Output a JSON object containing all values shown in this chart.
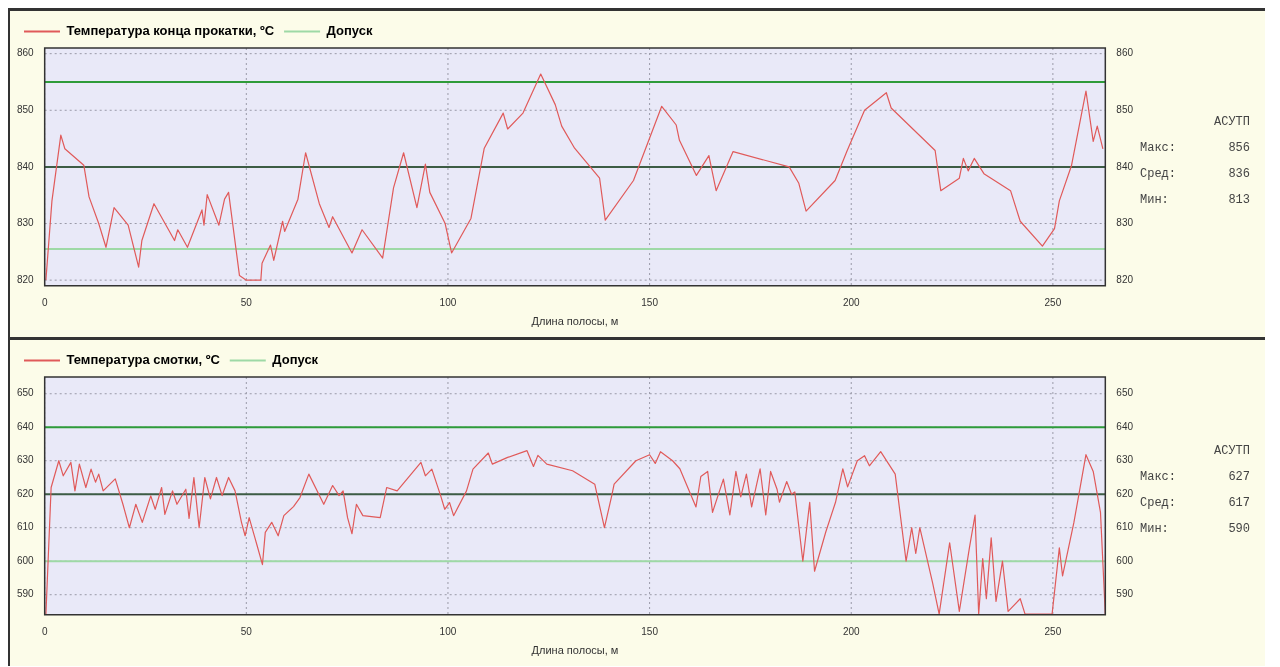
{
  "chart_data": [
    {
      "type": "line",
      "xlabel": "Длина полосы, м",
      "legend": "top left",
      "grid": true,
      "marker": "none",
      "line_style": "solid",
      "xlim": [
        0,
        263
      ],
      "xticks": [
        0,
        50,
        100,
        150,
        200,
        250
      ],
      "ylim": [
        819,
        861
      ],
      "yticks": [
        820,
        830,
        840,
        850,
        860
      ],
      "y2lim": [
        819,
        861
      ],
      "y2ticks": [
        820,
        830,
        840,
        850,
        860
      ],
      "series": [
        {
          "name": "Температура конца прокатки, ºC",
          "color": "#e05a5a",
          "x": [
            0.3,
            1.8,
            4,
            5,
            9.7,
            11,
            13.4,
            15.2,
            17.2,
            20.7,
            23.3,
            24.1,
            27.1,
            30.4,
            32.2,
            33,
            35.4,
            39,
            39.5,
            40.3,
            43.2,
            44.6,
            45.6,
            48.3,
            50,
            53.6,
            53.9,
            56,
            56.8,
            59,
            59.5,
            62.8,
            64.7,
            68.1,
            70.5,
            71.4,
            76.2,
            78.7,
            83.8,
            86.5,
            89,
            92.3,
            94.4,
            95.5,
            99.3,
            100.9,
            105.7,
            109,
            113.7,
            114.8,
            118.6,
            123,
            126.6,
            128.2,
            131.4,
            137.6,
            139,
            146,
            153,
            156.6,
            157.4,
            161.6,
            164.7,
            166.5,
            170.7,
            184.6,
            187,
            188.8,
            196,
            199,
            203.3,
            208.7,
            209.9,
            220.8,
            222.2,
            226.8,
            227.8,
            229,
            230.5,
            232.9,
            239.5,
            241.9,
            247.4,
            250.4,
            251.6,
            254.6,
            258.2,
            260,
            261,
            262.4
          ],
          "values": [
            820,
            834,
            845.6,
            843.2,
            840.3,
            834.7,
            830,
            825.8,
            832.8,
            829.7,
            822.3,
            827,
            833.5,
            829.3,
            827,
            828.9,
            825.8,
            832.4,
            829.7,
            835.1,
            829.7,
            834.3,
            835.5,
            820.8,
            820,
            820,
            823,
            826.2,
            823.5,
            830.4,
            828.6,
            834.3,
            842.5,
            833.5,
            829.3,
            831.2,
            824.8,
            828.9,
            823.9,
            836.3,
            842.5,
            832.8,
            840.5,
            835.5,
            830,
            824.8,
            830.9,
            843.3,
            849.5,
            846.7,
            849.5,
            856.4,
            851,
            847.2,
            843.3,
            838,
            830.6,
            837.6,
            850.7,
            847.4,
            844.7,
            838.5,
            842,
            835.8,
            842.7,
            840,
            837.1,
            832.2,
            837.6,
            842.9,
            850,
            853.1,
            850.4,
            842.9,
            835.8,
            838,
            841.5,
            839.3,
            841.5,
            838.8,
            835.8,
            830.4,
            826,
            829.1,
            834,
            840.2,
            853.4,
            844.5,
            847.2,
            843.2
          ]
        }
      ],
      "ref_lines": [
        {
          "axis": "y",
          "value": 855,
          "color": "#2e9b3a"
        },
        {
          "axis": "y",
          "value": 840,
          "color": "#3d5c45"
        },
        {
          "axis": "y",
          "value": 825.5,
          "color": "#9ed9a6",
          "label": "Допуск"
        }
      ],
      "annotations": [
        "АСУТП",
        "Макс:",
        "856",
        "Сред:",
        "836",
        "Мин:",
        "813"
      ]
    },
    {
      "type": "line",
      "xlabel": "Длина полосы, м",
      "legend": "top left",
      "grid": true,
      "marker": "none",
      "line_style": "solid",
      "xlim": [
        0,
        263
      ],
      "xticks": [
        0,
        50,
        100,
        150,
        200,
        250
      ],
      "ylim": [
        584,
        655
      ],
      "yticks": [
        590,
        600,
        610,
        620,
        630,
        640,
        650
      ],
      "y2lim": [
        584,
        655
      ],
      "y2ticks": [
        590,
        600,
        610,
        620,
        630,
        640,
        650
      ],
      "series": [
        {
          "name": "Температура смотки, ºC",
          "color": "#e05a5a",
          "x": [
            0.3,
            1.6,
            3.5,
            4.6,
            6.5,
            7.5,
            8.6,
            10.2,
            11.5,
            12.6,
            13.4,
            14.5,
            17.5,
            19.4,
            21,
            22.6,
            24.2,
            26.3,
            27.4,
            29,
            29.8,
            31.7,
            32.8,
            35,
            35.8,
            37,
            38.3,
            39.7,
            41.1,
            42.6,
            44,
            45.6,
            47.2,
            48.8,
            49.7,
            50.7,
            52.6,
            54,
            54.7,
            56.3,
            57.9,
            59.3,
            61.7,
            63.3,
            65.5,
            69.2,
            71.4,
            73,
            74,
            75.1,
            76.2,
            77.3,
            78.9,
            83.2,
            84.8,
            87.4,
            93.3,
            94.4,
            96,
            98.2,
            99.2,
            100.4,
            101.4,
            104.6,
            106.2,
            110,
            111,
            114.8,
            119.6,
            121.2,
            122.3,
            124.5,
            130.9,
            136.4,
            138.8,
            140.6,
            141.2,
            146.6,
            150,
            151.4,
            152.7,
            155.7,
            157.5,
            161.5,
            162.7,
            164.4,
            165.6,
            168.3,
            169.9,
            171.4,
            172.6,
            174,
            175.3,
            177.4,
            178.8,
            180,
            181.6,
            182.2,
            184,
            185.2,
            186,
            188,
            189.7,
            190.9,
            193.7,
            196.1,
            197.9,
            199.1,
            201.5,
            203.3,
            204.5,
            207.3,
            210.9,
            213.6,
            215,
            216,
            217,
            220.2,
            221.8,
            224.4,
            226.8,
            229.3,
            230.7,
            231.6,
            232.6,
            233.5,
            234.7,
            235.9,
            237.5,
            238.9,
            241.9,
            243.1,
            249.8,
            251.6,
            252.4,
            255.2,
            258.2,
            260,
            261.8,
            263
          ],
          "values": [
            584,
            622,
            630,
            625.5,
            629.5,
            621,
            629,
            622,
            627.5,
            623.6,
            626,
            621,
            624.6,
            617,
            610,
            617,
            611.6,
            619.5,
            615.5,
            622,
            614,
            621,
            617,
            621.5,
            612.8,
            625,
            610,
            625,
            618.6,
            625,
            619.6,
            625,
            621,
            611.6,
            607.6,
            613,
            605,
            599,
            608.6,
            611.6,
            607.6,
            613.6,
            616.3,
            619,
            626,
            617,
            622.6,
            619.6,
            621,
            613,
            608.2,
            617,
            613.6,
            613,
            622,
            621,
            629.5,
            625.5,
            627.5,
            619.5,
            615.5,
            617.5,
            613.6,
            621,
            627.5,
            632.3,
            629,
            631,
            633,
            628.3,
            631.6,
            629,
            627,
            623,
            610,
            619.5,
            623,
            630,
            631.8,
            629.2,
            632.7,
            630,
            627.6,
            616.2,
            625.3,
            626.8,
            614.6,
            624.5,
            613.8,
            626.8,
            619.2,
            626,
            616.2,
            627.6,
            613.8,
            626.8,
            621.5,
            617.6,
            623.8,
            620,
            620.7,
            600,
            617.6,
            597,
            608.8,
            617.6,
            627.6,
            622.2,
            630,
            631.5,
            628.5,
            632.7,
            626,
            600,
            610,
            602.3,
            610,
            593.4,
            584.2,
            605.5,
            585,
            604,
            613.8,
            584.2,
            600.8,
            588.8,
            607,
            588,
            600,
            585,
            588.8,
            584.2,
            584.2,
            604,
            595.6,
            611.5,
            631.8,
            626.8,
            614.6,
            584.2
          ]
        }
      ],
      "ref_lines": [
        {
          "axis": "y",
          "value": 640,
          "color": "#2e9b3a"
        },
        {
          "axis": "y",
          "value": 620,
          "color": "#3d5c45"
        },
        {
          "axis": "y",
          "value": 600,
          "color": "#9ed9a6",
          "label": "Допуск"
        }
      ],
      "annotations": [
        "АСУТП",
        "Макс:",
        "627",
        "Сред:",
        "617",
        "Мин:",
        "590"
      ]
    }
  ]
}
